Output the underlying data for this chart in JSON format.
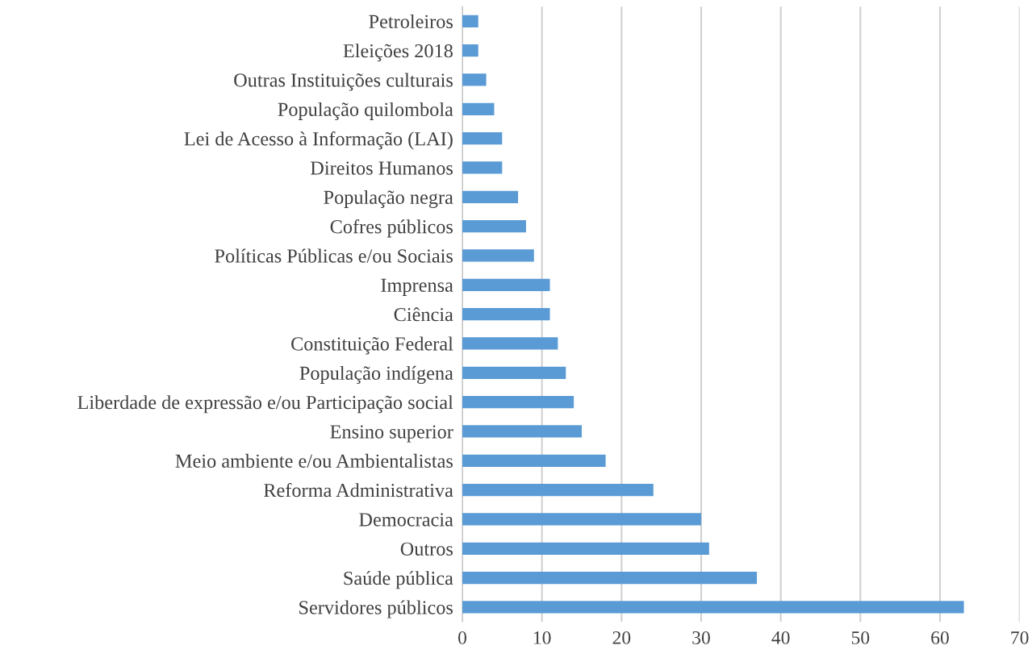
{
  "chart_data": {
    "type": "bar",
    "orientation": "horizontal",
    "categories": [
      "Petroleiros",
      "Eleições 2018",
      "Outras Instituições culturais",
      "População quilombola",
      "Lei de Acesso à Informação (LAI)",
      "Direitos Humanos",
      "População negra",
      "Cofres públicos",
      "Políticas Públicas e/ou Sociais",
      "Imprensa",
      "Ciência",
      "Constituição Federal",
      "População indígena",
      "Liberdade de expressão e/ou Participação social",
      "Ensino superior",
      "Meio ambiente e/ou Ambientalistas",
      "Reforma Administrativa",
      "Democracia",
      "Outros",
      "Saúde pública",
      "Servidores públicos"
    ],
    "values": [
      2,
      2,
      3,
      4,
      5,
      5,
      7,
      8,
      9,
      11,
      11,
      12,
      13,
      14,
      15,
      18,
      24,
      30,
      31,
      37,
      63
    ],
    "color": "#5b9bd5",
    "xlim": [
      0,
      70
    ],
    "xticks": [
      0,
      10,
      20,
      30,
      40,
      50,
      60,
      70
    ],
    "grid": "x"
  }
}
